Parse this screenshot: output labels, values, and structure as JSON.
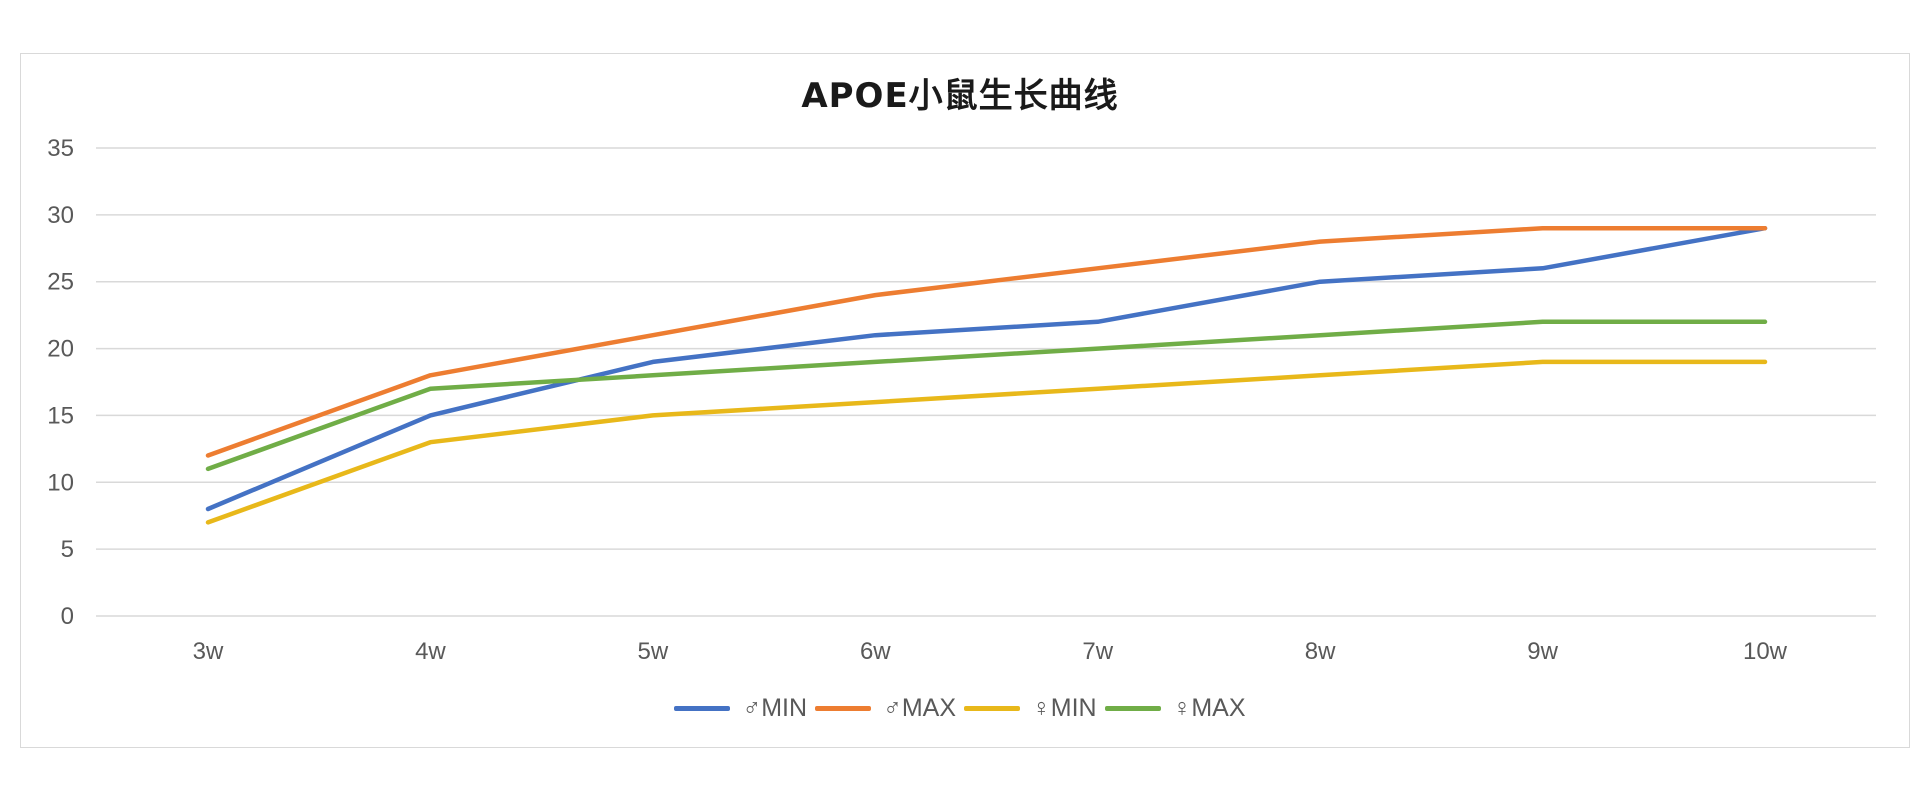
{
  "chart_data": {
    "type": "line",
    "title": "APOE小鼠生长曲线",
    "xlabel": "",
    "ylabel": "",
    "categories": [
      "3w",
      "4w",
      "5w",
      "6w",
      "7w",
      "8w",
      "9w",
      "10w"
    ],
    "ylim": [
      0,
      35
    ],
    "yticks": [
      "0",
      "5",
      "10",
      "15",
      "20",
      "25",
      "30",
      "35"
    ],
    "grid": true,
    "legend_position": "bottom",
    "series": [
      {
        "name": "♂MIN",
        "color": "#4472c4",
        "values": [
          8,
          15,
          19,
          21,
          22,
          25,
          26,
          29
        ]
      },
      {
        "name": "♂MAX",
        "color": "#ed7d31",
        "values": [
          12,
          18,
          21,
          24,
          26,
          28,
          29,
          29
        ]
      },
      {
        "name": "♀MIN",
        "color": "#e8b81a",
        "values": [
          7,
          13,
          15,
          16,
          17,
          18,
          19,
          19
        ]
      },
      {
        "name": "♀MAX",
        "color": "#70ad47",
        "values": [
          11,
          17,
          18,
          19,
          20,
          21,
          22,
          22
        ]
      }
    ]
  }
}
